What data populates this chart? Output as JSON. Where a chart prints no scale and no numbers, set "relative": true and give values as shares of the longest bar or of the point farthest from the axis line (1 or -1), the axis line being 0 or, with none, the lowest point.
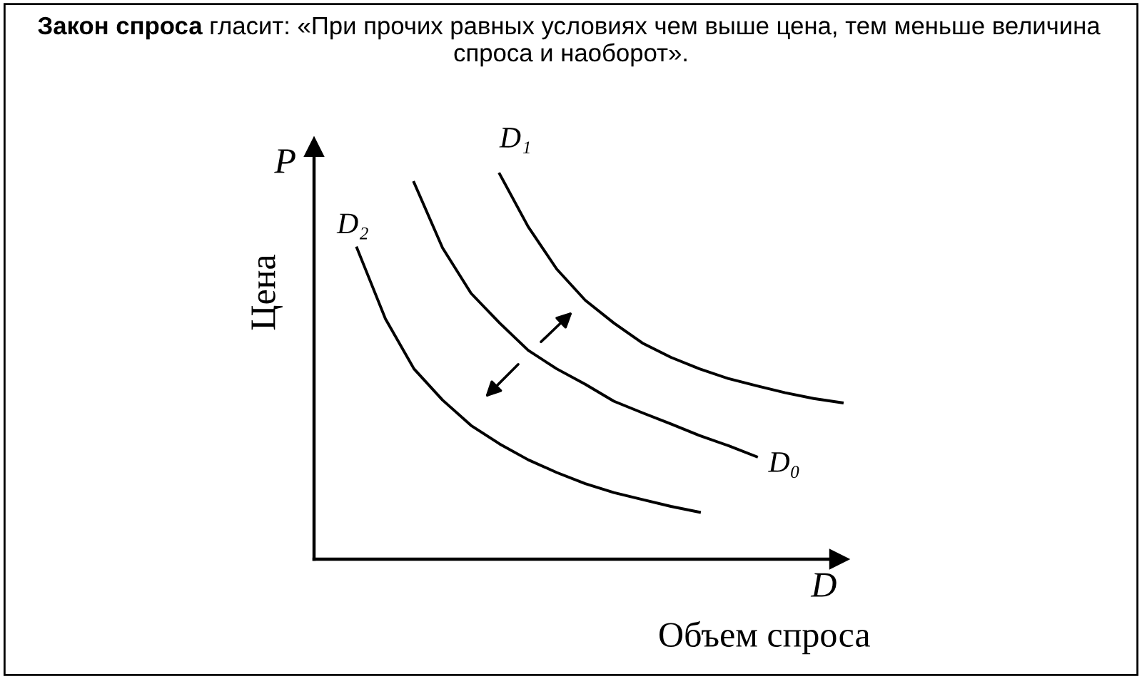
{
  "chart_data": {
    "type": "line",
    "relative": true,
    "title": "Закон спроса",
    "subtitle": "гласит: «При прочих равных условиях чем выше цена, тем меньше величина\nспроса и наоборот».",
    "xlabel": "Объем спроса",
    "ylabel": "Цена",
    "annotations": [
      "P",
      "D"
    ],
    "marker": "none",
    "line_style": "solid",
    "categories": [
      null,
      null,
      null,
      null,
      null,
      null,
      null,
      null,
      null,
      null,
      null,
      null,
      null,
      null,
      null,
      null,
      null,
      null
    ],
    "series": [
      {
        "name": "D₁",
        "color": "#000000",
        "values": [
          null,
          null,
          null,
          null,
          null,
          1.0,
          0.863,
          0.753,
          0.672,
          0.613,
          0.561,
          0.524,
          0.494,
          0.469,
          0.45,
          0.432,
          0.417,
          0.406
        ]
      },
      {
        "name": "D₀",
        "color": "#000000",
        "values": [
          null,
          null,
          0.978,
          0.808,
          0.69,
          0.613,
          0.542,
          0.494,
          0.454,
          0.41,
          0.38,
          0.351,
          0.321,
          0.295,
          0.266,
          null,
          null,
          null
        ]
      },
      {
        "name": "D₂",
        "color": "#000000",
        "values": [
          0.808,
          0.624,
          0.494,
          0.413,
          0.347,
          0.299,
          0.258,
          0.225,
          0.196,
          0.173,
          0.155,
          0.137,
          0.122,
          null,
          null,
          null,
          null,
          null
        ]
      }
    ]
  }
}
